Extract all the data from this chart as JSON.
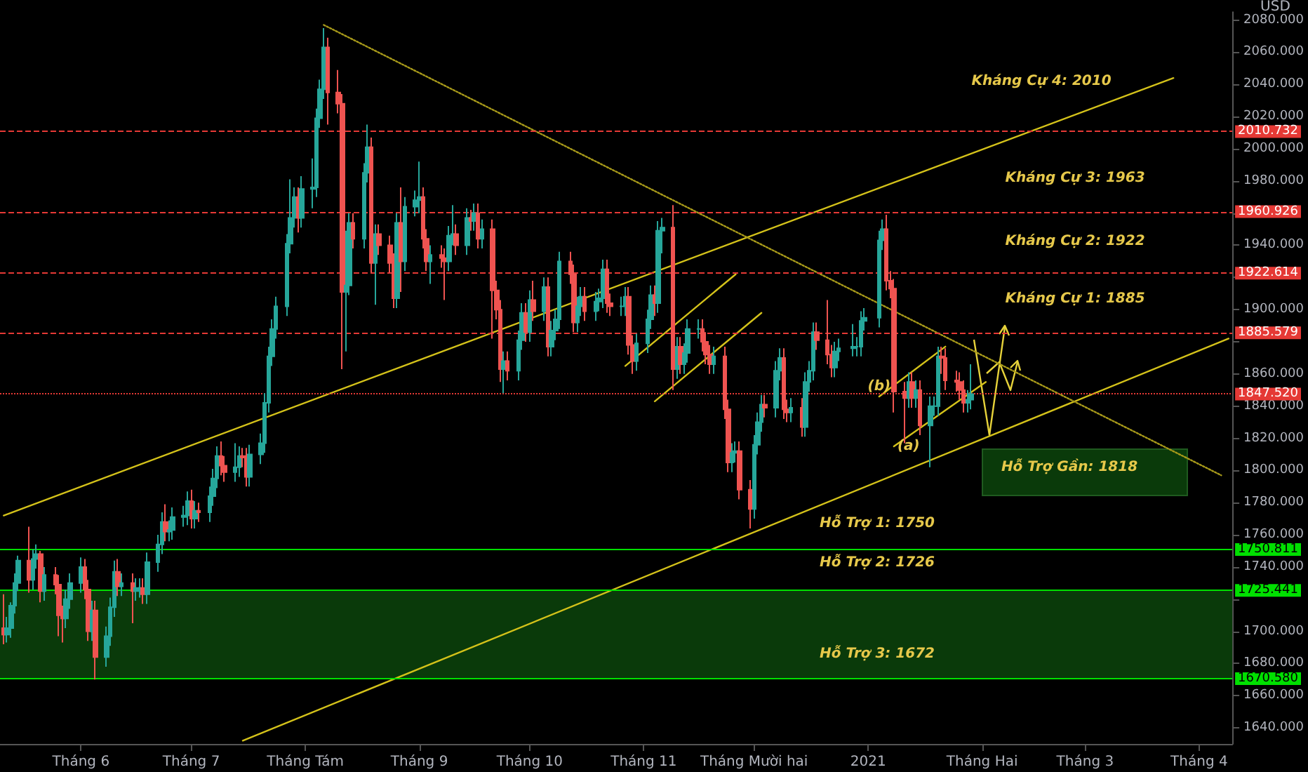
{
  "chart_data": {
    "type": "candlestick",
    "ylabel": "USD",
    "xlim": [
      "2020-05-10",
      "2021-04-10"
    ],
    "ylim": [
      1630,
      2085
    ],
    "xticks": [
      {
        "value": "2020-06-01",
        "label": "Tháng 6"
      },
      {
        "value": "2020-07-01",
        "label": "Tháng 7"
      },
      {
        "value": "2020-08-01",
        "label": "Tháng Tám"
      },
      {
        "value": "2020-09-01",
        "label": "Tháng 9"
      },
      {
        "value": "2020-10-01",
        "label": "Tháng 10"
      },
      {
        "value": "2020-11-01",
        "label": "Tháng 11"
      },
      {
        "value": "2020-12-01",
        "label": "Tháng Mười hai"
      },
      {
        "value": "2021-01-01",
        "label": "2021"
      },
      {
        "value": "2021-02-01",
        "label": "Tháng Hai"
      },
      {
        "value": "2021-03-01",
        "label": "Tháng 3"
      },
      {
        "value": "2021-04-01",
        "label": "Tháng 4"
      }
    ],
    "yticks": [
      {
        "value": 1640,
        "label": "1640.000"
      },
      {
        "value": 1660,
        "label": "1660.000"
      },
      {
        "value": 1680,
        "label": "1680.000"
      },
      {
        "value": 1700,
        "label": "1700.000"
      },
      {
        "value": 1720,
        "label": null
      },
      {
        "value": 1740,
        "label": "1740.000"
      },
      {
        "value": 1760,
        "label": "1760.000"
      },
      {
        "value": 1780,
        "label": "1780.000"
      },
      {
        "value": 1800,
        "label": "1800.000"
      },
      {
        "value": 1820,
        "label": "1820.000"
      },
      {
        "value": 1840,
        "label": "1840.000"
      },
      {
        "value": 1860,
        "label": "1860.000"
      },
      {
        "value": 1880,
        "label": null
      },
      {
        "value": 1900,
        "label": "1900.000"
      },
      {
        "value": 1920,
        "label": null
      },
      {
        "value": 1940,
        "label": "1940.000"
      },
      {
        "value": 1960,
        "label": null
      },
      {
        "value": 1980,
        "label": "1980.000"
      },
      {
        "value": 2000,
        "label": "2000.000"
      },
      {
        "value": 2020,
        "label": "2020.000"
      },
      {
        "value": 2040,
        "label": "2040.000"
      },
      {
        "value": 2060,
        "label": "2060.000"
      },
      {
        "value": 2080,
        "label": "2080.000"
      }
    ],
    "marker": "none",
    "series": [
      {
        "x": [
          "2020-05-11",
          "2020-05-12",
          "2020-05-13",
          "2020-05-14",
          "2020-05-15",
          "2020-05-18",
          "2020-05-19",
          "2020-05-20",
          "2020-05-21",
          "2020-05-22",
          "2020-05-25",
          "2020-05-26",
          "2020-05-27",
          "2020-05-28",
          "2020-05-29",
          "2020-06-01",
          "2020-06-02",
          "2020-06-03",
          "2020-06-04",
          "2020-06-05",
          "2020-06-08",
          "2020-06-09",
          "2020-06-10",
          "2020-06-11",
          "2020-06-12",
          "2020-06-15",
          "2020-06-16",
          "2020-06-17",
          "2020-06-18",
          "2020-06-19",
          "2020-06-22",
          "2020-06-23",
          "2020-06-24",
          "2020-06-25",
          "2020-06-26",
          "2020-06-29",
          "2020-06-30",
          "2020-07-01",
          "2020-07-02",
          "2020-07-03",
          "2020-07-06",
          "2020-07-07",
          "2020-07-08",
          "2020-07-09",
          "2020-07-10",
          "2020-07-13",
          "2020-07-14",
          "2020-07-15",
          "2020-07-16",
          "2020-07-17",
          "2020-07-20",
          "2020-07-21",
          "2020-07-22",
          "2020-07-23",
          "2020-07-24",
          "2020-07-27",
          "2020-07-28",
          "2020-07-29",
          "2020-07-30",
          "2020-07-31",
          "2020-08-03",
          "2020-08-04",
          "2020-08-05",
          "2020-08-06",
          "2020-08-07",
          "2020-08-10",
          "2020-08-11",
          "2020-08-12",
          "2020-08-13",
          "2020-08-14",
          "2020-08-17",
          "2020-08-18",
          "2020-08-19",
          "2020-08-20",
          "2020-08-21",
          "2020-08-24",
          "2020-08-25",
          "2020-08-26",
          "2020-08-27",
          "2020-08-28",
          "2020-08-31",
          "2020-09-01",
          "2020-09-02",
          "2020-09-03",
          "2020-09-04",
          "2020-09-07",
          "2020-09-08",
          "2020-09-09",
          "2020-09-10",
          "2020-09-11",
          "2020-09-14",
          "2020-09-15",
          "2020-09-16",
          "2020-09-17",
          "2020-09-18",
          "2020-09-21",
          "2020-09-22",
          "2020-09-23",
          "2020-09-24",
          "2020-09-25",
          "2020-09-28",
          "2020-09-29",
          "2020-09-30",
          "2020-10-01",
          "2020-10-02",
          "2020-10-05",
          "2020-10-06",
          "2020-10-07",
          "2020-10-08",
          "2020-10-09",
          "2020-10-12",
          "2020-10-13",
          "2020-10-14",
          "2020-10-15",
          "2020-10-16",
          "2020-10-19",
          "2020-10-20",
          "2020-10-21",
          "2020-10-22",
          "2020-10-23",
          "2020-10-26",
          "2020-10-27",
          "2020-10-28",
          "2020-10-29",
          "2020-10-30",
          "2020-11-02",
          "2020-11-03",
          "2020-11-04",
          "2020-11-05",
          "2020-11-06",
          "2020-11-09",
          "2020-11-10",
          "2020-11-11",
          "2020-11-12",
          "2020-11-13",
          "2020-11-16",
          "2020-11-17",
          "2020-11-18",
          "2020-11-19",
          "2020-11-20",
          "2020-11-23",
          "2020-11-24",
          "2020-11-25",
          "2020-11-26",
          "2020-11-27",
          "2020-11-30",
          "2020-12-01",
          "2020-12-02",
          "2020-12-03",
          "2020-12-04",
          "2020-12-07",
          "2020-12-08",
          "2020-12-09",
          "2020-12-10",
          "2020-12-11",
          "2020-12-14",
          "2020-12-15",
          "2020-12-16",
          "2020-12-17",
          "2020-12-18",
          "2020-12-21",
          "2020-12-22",
          "2020-12-23",
          "2020-12-24",
          "2020-12-28",
          "2020-12-29",
          "2020-12-30",
          "2020-12-31",
          "2021-01-04",
          "2021-01-05",
          "2021-01-06",
          "2021-01-07",
          "2021-01-08",
          "2021-01-11",
          "2021-01-12",
          "2021-01-13",
          "2021-01-14",
          "2021-01-15",
          "2021-01-18",
          "2021-01-19",
          "2021-01-20",
          "2021-01-21",
          "2021-01-22",
          "2021-01-25",
          "2021-01-26",
          "2021-01-27",
          "2021-01-28",
          "2021-01-29"
        ],
        "ohlc": [
          [
            1702,
            1723,
            1692,
            1698
          ],
          [
            1698,
            1709,
            1693,
            1702
          ],
          [
            1702,
            1718,
            1696,
            1716
          ],
          [
            1716,
            1736,
            1711,
            1730
          ],
          [
            1730,
            1747,
            1725,
            1744
          ],
          [
            1744,
            1765,
            1724,
            1732
          ],
          [
            1732,
            1751,
            1726,
            1745
          ],
          [
            1745,
            1754,
            1739,
            1748
          ],
          [
            1748,
            1750,
            1718,
            1725
          ],
          [
            1725,
            1740,
            1719,
            1735
          ],
          [
            1735,
            1740,
            1723,
            1729
          ],
          [
            1729,
            1735,
            1697,
            1710
          ],
          [
            1710,
            1716,
            1693,
            1708
          ],
          [
            1708,
            1726,
            1702,
            1720
          ],
          [
            1720,
            1736,
            1714,
            1730
          ],
          [
            1730,
            1746,
            1724,
            1740
          ],
          [
            1740,
            1745,
            1720,
            1726
          ],
          [
            1726,
            1732,
            1694,
            1700
          ],
          [
            1700,
            1719,
            1694,
            1713
          ],
          [
            1713,
            1719,
            1670,
            1684
          ],
          [
            1684,
            1703,
            1678,
            1697
          ],
          [
            1697,
            1721,
            1691,
            1715
          ],
          [
            1715,
            1744,
            1709,
            1737
          ],
          [
            1737,
            1745,
            1722,
            1728
          ],
          [
            1728,
            1736,
            1722,
            1730
          ],
          [
            1730,
            1736,
            1705,
            1725
          ],
          [
            1725,
            1733,
            1719,
            1727
          ],
          [
            1727,
            1733,
            1721,
            1727
          ],
          [
            1727,
            1733,
            1717,
            1723
          ],
          [
            1723,
            1749,
            1717,
            1743
          ],
          [
            1743,
            1760,
            1737,
            1754
          ],
          [
            1754,
            1774,
            1748,
            1768
          ],
          [
            1768,
            1779,
            1756,
            1762
          ],
          [
            1762,
            1769,
            1756,
            1763
          ],
          [
            1763,
            1777,
            1757,
            1771
          ],
          [
            1771,
            1778,
            1765,
            1772
          ],
          [
            1772,
            1787,
            1766,
            1781
          ],
          [
            1781,
            1788,
            1764,
            1770
          ],
          [
            1770,
            1781,
            1764,
            1775
          ],
          [
            1775,
            1780,
            1768,
            1774
          ],
          [
            1774,
            1790,
            1768,
            1784
          ],
          [
            1784,
            1801,
            1778,
            1795
          ],
          [
            1795,
            1815,
            1789,
            1809
          ],
          [
            1809,
            1818,
            1797,
            1803
          ],
          [
            1803,
            1809,
            1793,
            1799
          ],
          [
            1799,
            1817,
            1793,
            1802
          ],
          [
            1802,
            1815,
            1796,
            1809
          ],
          [
            1809,
            1814,
            1802,
            1808
          ],
          [
            1808,
            1814,
            1790,
            1796
          ],
          [
            1796,
            1816,
            1790,
            1810
          ],
          [
            1810,
            1823,
            1804,
            1817
          ],
          [
            1817,
            1848,
            1811,
            1842
          ],
          [
            1842,
            1877,
            1836,
            1871
          ],
          [
            1871,
            1894,
            1865,
            1888
          ],
          [
            1888,
            1908,
            1882,
            1902
          ],
          [
            1902,
            1947,
            1896,
            1941
          ],
          [
            1941,
            1981,
            1935,
            1957
          ],
          [
            1957,
            1976,
            1951,
            1970
          ],
          [
            1970,
            1976,
            1948,
            1957
          ],
          [
            1957,
            1983,
            1951,
            1975
          ],
          [
            1975,
            1994,
            1963,
            1976
          ],
          [
            1976,
            2025,
            1970,
            2019
          ],
          [
            2019,
            2043,
            2013,
            2037
          ],
          [
            2037,
            2075,
            2031,
            2063
          ],
          [
            2063,
            2069,
            2015,
            2035
          ],
          [
            2035,
            2049,
            2022,
            2028
          ],
          [
            2028,
            2034,
            1863,
            1911
          ],
          [
            1911,
            1949,
            1874,
            1915
          ],
          [
            1915,
            1960,
            1909,
            1954
          ],
          [
            1954,
            1960,
            1938,
            1944
          ],
          [
            1944,
            1991,
            1938,
            1985
          ],
          [
            1985,
            2015,
            1979,
            2001
          ],
          [
            2001,
            2007,
            1923,
            1929
          ],
          [
            1929,
            1953,
            1903,
            1947
          ],
          [
            1947,
            1953,
            1934,
            1940
          ],
          [
            1940,
            1946,
            1923,
            1929
          ],
          [
            1929,
            1935,
            1901,
            1907
          ],
          [
            1907,
            1960,
            1901,
            1954
          ],
          [
            1954,
            1976,
            1911,
            1930
          ],
          [
            1930,
            1970,
            1924,
            1964
          ],
          [
            1964,
            1974,
            1958,
            1968
          ],
          [
            1968,
            1992,
            1960,
            1970
          ],
          [
            1970,
            1976,
            1938,
            1944
          ],
          [
            1944,
            1950,
            1924,
            1930
          ],
          [
            1930,
            1940,
            1916,
            1934
          ],
          [
            1934,
            1940,
            1926,
            1932
          ],
          [
            1932,
            1938,
            1906,
            1930
          ],
          [
            1930,
            1952,
            1924,
            1946
          ],
          [
            1946,
            1965,
            1940,
            1947
          ],
          [
            1947,
            1953,
            1934,
            1940
          ],
          [
            1940,
            1963,
            1934,
            1957
          ],
          [
            1957,
            1962,
            1949,
            1955
          ],
          [
            1955,
            1966,
            1949,
            1960
          ],
          [
            1960,
            1966,
            1938,
            1944
          ],
          [
            1944,
            1956,
            1938,
            1950
          ],
          [
            1950,
            1956,
            1882,
            1912
          ],
          [
            1912,
            1918,
            1894,
            1900
          ],
          [
            1900,
            1906,
            1855,
            1863
          ],
          [
            1863,
            1874,
            1848,
            1868
          ],
          [
            1868,
            1874,
            1856,
            1862
          ],
          [
            1862,
            1887,
            1856,
            1881
          ],
          [
            1881,
            1904,
            1875,
            1898
          ],
          [
            1898,
            1904,
            1880,
            1886
          ],
          [
            1886,
            1912,
            1880,
            1906
          ],
          [
            1906,
            1918,
            1893,
            1899
          ],
          [
            1899,
            1920,
            1893,
            1914
          ],
          [
            1914,
            1920,
            1871,
            1877
          ],
          [
            1877,
            1893,
            1871,
            1887
          ],
          [
            1887,
            1900,
            1881,
            1894
          ],
          [
            1894,
            1936,
            1888,
            1930
          ],
          [
            1930,
            1936,
            1916,
            1922
          ],
          [
            1922,
            1928,
            1886,
            1892
          ],
          [
            1892,
            1908,
            1886,
            1902
          ],
          [
            1902,
            1914,
            1896,
            1908
          ],
          [
            1908,
            1914,
            1893,
            1899
          ],
          [
            1899,
            1911,
            1893,
            1905
          ],
          [
            1905,
            1913,
            1899,
            1907
          ],
          [
            1907,
            1931,
            1901,
            1925
          ],
          [
            1925,
            1931,
            1898,
            1904
          ],
          [
            1904,
            1910,
            1896,
            1902
          ],
          [
            1902,
            1908,
            1896,
            1902
          ],
          [
            1902,
            1914,
            1896,
            1908
          ],
          [
            1908,
            1914,
            1872,
            1878
          ],
          [
            1878,
            1884,
            1860,
            1868
          ],
          [
            1868,
            1885,
            1862,
            1879
          ],
          [
            1879,
            1900,
            1873,
            1894
          ],
          [
            1894,
            1915,
            1888,
            1909
          ],
          [
            1909,
            1915,
            1896,
            1904
          ],
          [
            1904,
            1955,
            1898,
            1949
          ],
          [
            1949,
            1957,
            1935,
            1951
          ],
          [
            1951,
            1965,
            1850,
            1863
          ],
          [
            1863,
            1883,
            1857,
            1877
          ],
          [
            1877,
            1883,
            1860,
            1866
          ],
          [
            1866,
            1879,
            1860,
            1873
          ],
          [
            1873,
            1894,
            1867,
            1888
          ],
          [
            1888,
            1894,
            1882,
            1888
          ],
          [
            1888,
            1894,
            1874,
            1880
          ],
          [
            1880,
            1886,
            1866,
            1872
          ],
          [
            1872,
            1878,
            1860,
            1866
          ],
          [
            1866,
            1877,
            1860,
            1871
          ],
          [
            1871,
            1877,
            1832,
            1838
          ],
          [
            1838,
            1844,
            1799,
            1805
          ],
          [
            1805,
            1817,
            1799,
            1811
          ],
          [
            1811,
            1818,
            1805,
            1812
          ],
          [
            1812,
            1818,
            1782,
            1788
          ],
          [
            1788,
            1794,
            1764,
            1776
          ],
          [
            1776,
            1822,
            1770,
            1816
          ],
          [
            1816,
            1836,
            1810,
            1830
          ],
          [
            1830,
            1847,
            1824,
            1841
          ],
          [
            1841,
            1847,
            1833,
            1839
          ],
          [
            1839,
            1868,
            1833,
            1862
          ],
          [
            1862,
            1876,
            1856,
            1870
          ],
          [
            1870,
            1876,
            1832,
            1838
          ],
          [
            1838,
            1844,
            1830,
            1836
          ],
          [
            1836,
            1845,
            1830,
            1839
          ],
          [
            1839,
            1845,
            1821,
            1827
          ],
          [
            1827,
            1861,
            1821,
            1855
          ],
          [
            1855,
            1868,
            1849,
            1862
          ],
          [
            1862,
            1892,
            1856,
            1886
          ],
          [
            1886,
            1892,
            1875,
            1881
          ],
          [
            1881,
            1906,
            1866,
            1872
          ],
          [
            1872,
            1878,
            1858,
            1864
          ],
          [
            1864,
            1880,
            1858,
            1874
          ],
          [
            1874,
            1882,
            1868,
            1876
          ],
          [
            1876,
            1891,
            1871,
            1877
          ],
          [
            1877,
            1883,
            1871,
            1877
          ],
          [
            1877,
            1899,
            1871,
            1893
          ],
          [
            1893,
            1901,
            1887,
            1895
          ],
          [
            1895,
            1949,
            1889,
            1943
          ],
          [
            1943,
            1956,
            1937,
            1950
          ],
          [
            1950,
            1959,
            1912,
            1918
          ],
          [
            1918,
            1924,
            1907,
            1913
          ],
          [
            1913,
            1919,
            1836,
            1849
          ],
          [
            1849,
            1855,
            1817,
            1845
          ],
          [
            1845,
            1861,
            1839,
            1855
          ],
          [
            1855,
            1861,
            1839,
            1845
          ],
          [
            1845,
            1856,
            1839,
            1850
          ],
          [
            1850,
            1856,
            1822,
            1828
          ],
          [
            1828,
            1846,
            1802,
            1840
          ],
          [
            1840,
            1846,
            1834,
            1840
          ],
          [
            1840,
            1877,
            1834,
            1871
          ],
          [
            1871,
            1877,
            1860,
            1870
          ],
          [
            1870,
            1876,
            1850,
            1856
          ],
          [
            1856,
            1862,
            1849,
            1855
          ],
          [
            1855,
            1861,
            1844,
            1850
          ],
          [
            1850,
            1856,
            1836,
            1842
          ],
          [
            1842,
            1850,
            1836,
            1844
          ],
          [
            1844,
            1866,
            1838,
            1847.52
          ]
        ]
      },
      {
        "type": "line",
        "x": [
          "2020-05-11",
          "2021-03-25"
        ],
        "values": [
          1772,
          2044
        ],
        "color": "#d4c21a"
      },
      {
        "type": "line",
        "x": [
          "2020-07-15",
          "2021-04-09"
        ],
        "values": [
          1632,
          1882
        ],
        "color": "#d4c21a"
      },
      {
        "type": "line",
        "x": [
          "2020-08-06",
          "2021-04-07"
        ],
        "values": [
          2077,
          1797
        ],
        "color": "#a89a1a",
        "line_style": "dotted"
      },
      {
        "type": "line",
        "x": [
          "2020-10-27",
          "2020-11-26"
        ],
        "values": [
          1865,
          1922
        ],
        "color": "#d4c21a"
      },
      {
        "type": "line",
        "x": [
          "2020-11-04",
          "2020-12-03"
        ],
        "values": [
          1843,
          1898
        ],
        "color": "#d4c21a"
      },
      {
        "type": "line",
        "x": [
          "2021-01-04",
          "2021-01-22"
        ],
        "values": [
          1846,
          1877
        ],
        "color": "#d4c21a"
      },
      {
        "type": "line",
        "x": [
          "2021-01-08",
          "2021-02-02"
        ],
        "values": [
          1815,
          1855
        ],
        "color": "#d4c21a"
      }
    ],
    "ref_lines": [
      {
        "axis": "y",
        "value": 2010.732,
        "label": "2010.732",
        "color": "#e53935",
        "line_style": "dashed"
      },
      {
        "axis": "y",
        "value": 1960.926,
        "label": "1960.926",
        "color": "#e53935",
        "line_style": "dashed"
      },
      {
        "axis": "y",
        "value": 1922.614,
        "label": "1922.614",
        "color": "#e53935",
        "line_style": "dashed"
      },
      {
        "axis": "y",
        "value": 1885.579,
        "label": "1885.579",
        "color": "#e53935",
        "line_style": "dashed"
      },
      {
        "axis": "y",
        "value": 1847.52,
        "label": "1847.520",
        "color": "#e53935",
        "line_style": "dotted"
      },
      {
        "axis": "y",
        "value": 1750.811,
        "label": "1750.811",
        "color": "#00e000",
        "line_style": "solid"
      },
      {
        "axis": "y",
        "value": 1725.441,
        "label": "1725.441",
        "color": "#00e000",
        "line_style": "solid"
      },
      {
        "axis": "y",
        "value": 1670.58,
        "label": "1670.580",
        "color": "#00e000",
        "line_style": "solid"
      }
    ],
    "bands": [
      {
        "axis": "y",
        "from": 1670.58,
        "to": 1725.441,
        "color": "#0a3a0a"
      }
    ],
    "annotations": [
      "Kháng Cự 4: 2010",
      "Kháng Cự 3: 1963",
      "Kháng Cự 2: 1922",
      "Kháng Cự 1: 1885",
      "Hỗ Trợ Gần: 1818",
      "Hỗ Trợ 1: 1750",
      "Hỗ Trợ 2: 1726",
      "Hỗ Trợ 3: 1672",
      {
        "text": "(b)",
        "x": "2021-01-04",
        "y": 1852
      },
      {
        "text": "(a)",
        "x": "2021-01-12",
        "y": 1815
      }
    ]
  }
}
